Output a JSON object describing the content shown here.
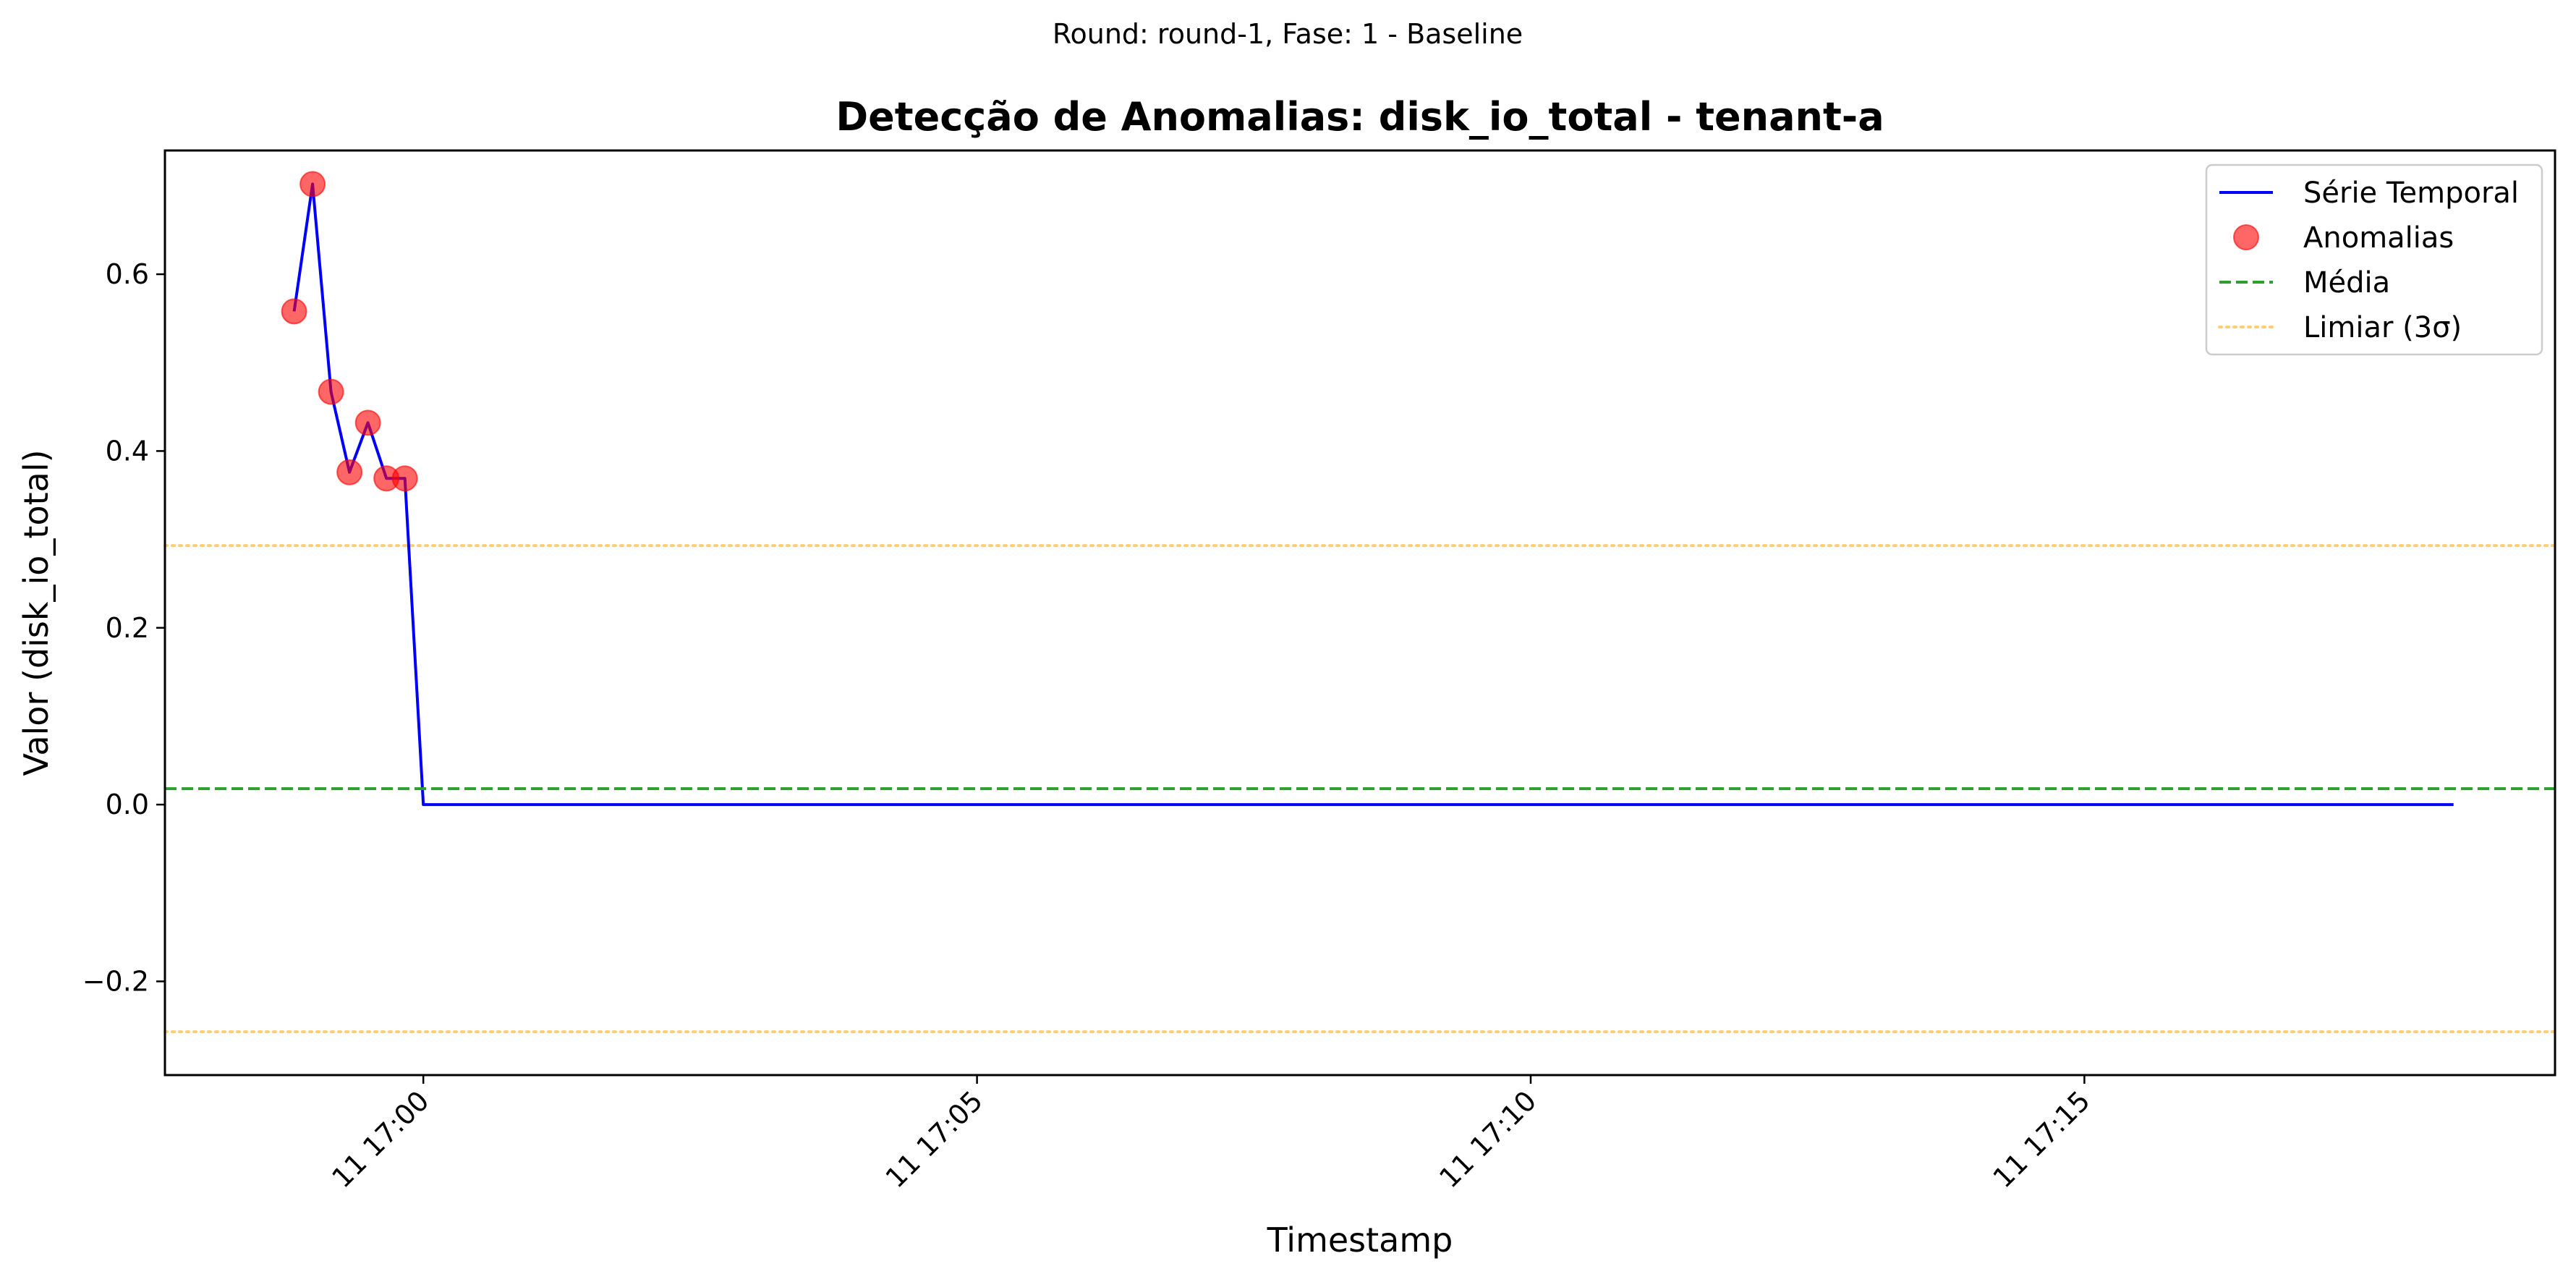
{
  "suptitle": "Round: round-1, Fase: 1 - Baseline",
  "chart_data": {
    "type": "line",
    "title": "Detecção de Anomalias: disk_io_total - tenant-a",
    "xlabel": "Timestamp",
    "ylabel": "Valor (disk_io_total)",
    "xlim": [
      "2024-01-11T16:57:40",
      "2024-01-11T17:19:15"
    ],
    "ylim": [
      -0.306,
      0.74
    ],
    "x_tick_labels": [
      "11 17:00",
      "11 17:05",
      "11 17:10",
      "11 17:15"
    ],
    "x_ticks": [
      "2024-01-11T17:00:00",
      "2024-01-11T17:05:00",
      "2024-01-11T17:10:00",
      "2024-01-11T17:15:00"
    ],
    "y_ticks": [
      -0.2,
      0.0,
      0.2,
      0.4,
      0.6
    ],
    "y_tick_labels": [
      "−0.2",
      "0.0",
      "0.2",
      "0.4",
      "0.6"
    ],
    "grid": false,
    "legend_position": "top-right",
    "series": [
      {
        "name": "Série Temporal",
        "color": "#0000ff",
        "x": [
          "2024-01-11T16:58:50",
          "2024-01-11T16:59:00",
          "2024-01-11T16:59:10",
          "2024-01-11T16:59:20",
          "2024-01-11T16:59:30",
          "2024-01-11T16:59:40",
          "2024-01-11T16:59:50",
          "2024-01-11T17:00:00",
          "2024-01-11T17:18:20"
        ],
        "y": [
          0.558,
          0.702,
          0.467,
          0.376,
          0.432,
          0.369,
          0.369,
          0.0,
          0.0
        ]
      },
      {
        "name": "Anomalias",
        "type": "scatter",
        "color": "#ff0000",
        "x": [
          "2024-01-11T16:58:50",
          "2024-01-11T16:59:00",
          "2024-01-11T16:59:10",
          "2024-01-11T16:59:20",
          "2024-01-11T16:59:30",
          "2024-01-11T16:59:40",
          "2024-01-11T16:59:50"
        ],
        "y": [
          0.558,
          0.702,
          0.467,
          0.376,
          0.432,
          0.369,
          0.369
        ]
      },
      {
        "name": "Média",
        "type": "hline",
        "style": "dashed",
        "color": "#2ca02c",
        "y": 0.018
      },
      {
        "name": "Limiar (3σ)",
        "type": "hline",
        "style": "dotted",
        "color": "#ffa500",
        "y": [
          0.293,
          -0.257
        ]
      }
    ]
  }
}
